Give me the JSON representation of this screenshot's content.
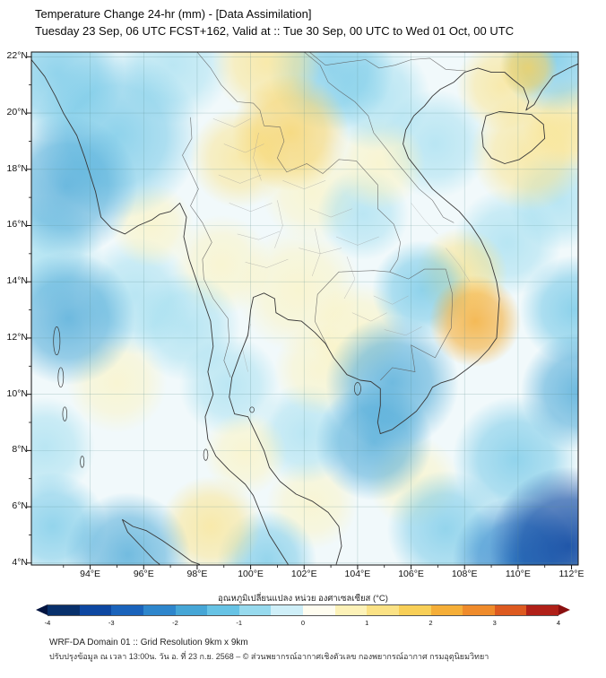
{
  "header": {
    "title": "Temperature Change 24-hr (mm) - [Data Assimilation]",
    "subtitle": "Tuesday 23 Sep, 06 UTC FCST+162, Valid at :: Tue 30 Sep, 00 UTC to Wed 01 Oct, 00 UTC"
  },
  "colorbar": {
    "label": "อุณหภูมิเปลี่ยนแปลง หน่วย องศาเซลเซียส (°C)",
    "ticks": [
      -4,
      -3,
      -2,
      -1,
      0,
      1,
      2,
      3,
      4
    ],
    "colors": [
      "#08306b",
      "#0d47a1",
      "#1a63bb",
      "#2e86cc",
      "#46a6d6",
      "#67c3e5",
      "#97daee",
      "#cfeff8",
      "#fffdf0",
      "#fdf2b8",
      "#fbe285",
      "#f8cf57",
      "#f5ae38",
      "#ef8b2b",
      "#dd5a20",
      "#b02018"
    ],
    "left_arrow_color": "#041540",
    "right_arrow_color": "#8a0f0f"
  },
  "footer": {
    "line1": "WRF-DA Domain 01 :: Grid Resolution 9km x 9km",
    "line2": "ปรับปรุงข้อมูล ณ เวลา 13:00น. วัน อ. ที่ 23 ก.ย. 2568 – © ส่วนพยากรณ์อากาศเชิงตัวเลข กองพยากรณ์อากาศ กรมอุตุนิยมวิทยา"
  },
  "chart_data": {
    "type": "heatmap",
    "variable": "24-hr temperature change",
    "units": "°C",
    "model": "WRF-DA Domain 01, grid resolution 9km x 9km",
    "init_time": "Tuesday 23 Sep, 06 UTC",
    "forecast_hour": "FCST+162",
    "valid_period": "Tue 30 Sep, 00 UTC to Wed 01 Oct, 00 UTC",
    "lon_range": [
      91.8,
      112.25
    ],
    "lat_range": [
      3.93,
      22.17
    ],
    "scale_range": [
      -4,
      4
    ],
    "x_ticks": [
      {
        "lon": 94,
        "label": "94°E"
      },
      {
        "lon": 96,
        "label": "96°E"
      },
      {
        "lon": 98,
        "label": "98°E"
      },
      {
        "lon": 100,
        "label": "100°E"
      },
      {
        "lon": 102,
        "label": "102°E"
      },
      {
        "lon": 104,
        "label": "104°E"
      },
      {
        "lon": 106,
        "label": "106°E"
      },
      {
        "lon": 108,
        "label": "108°E"
      },
      {
        "lon": 110,
        "label": "110°E"
      },
      {
        "lon": 112,
        "label": "112°E"
      }
    ],
    "y_ticks": [
      {
        "lat": 4,
        "label": "4°N"
      },
      {
        "lat": 6,
        "label": "6°N"
      },
      {
        "lat": 8,
        "label": "8°N"
      },
      {
        "lat": 10,
        "label": "10°N"
      },
      {
        "lat": 12,
        "label": "12°N"
      },
      {
        "lat": 14,
        "label": "14°N"
      },
      {
        "lat": 16,
        "label": "16°N"
      },
      {
        "lat": 18,
        "label": "18°N"
      },
      {
        "lat": 20,
        "label": "20°N"
      },
      {
        "lat": 22,
        "label": "22°N"
      }
    ],
    "anomalies": [
      {
        "lon": 92.8,
        "lat": 21.4,
        "dT": -1.3,
        "r": 1.6
      },
      {
        "lon": 95.0,
        "lat": 19.2,
        "dT": -1.4,
        "r": 2.0
      },
      {
        "lon": 93.1,
        "lat": 17.4,
        "dT": -1.6,
        "r": 1.7
      },
      {
        "lon": 92.3,
        "lat": 15.0,
        "dT": -1.0,
        "r": 1.4
      },
      {
        "lon": 93.2,
        "lat": 12.7,
        "dT": -1.8,
        "r": 1.6
      },
      {
        "lon": 95.7,
        "lat": 13.5,
        "dT": -0.8,
        "r": 1.4
      },
      {
        "lon": 97.6,
        "lat": 12.4,
        "dT": -0.9,
        "r": 1.3
      },
      {
        "lon": 99.2,
        "lat": 10.3,
        "dT": -0.7,
        "r": 1.2
      },
      {
        "lon": 97.1,
        "lat": 21.7,
        "dT": -0.7,
        "r": 1.4
      },
      {
        "lon": 103.0,
        "lat": 21.6,
        "dT": -1.2,
        "r": 1.5
      },
      {
        "lon": 104.7,
        "lat": 20.6,
        "dT": -1.0,
        "r": 1.3
      },
      {
        "lon": 106.9,
        "lat": 18.9,
        "dT": -0.8,
        "r": 1.3
      },
      {
        "lon": 104.2,
        "lat": 16.4,
        "dT": -0.7,
        "r": 1.1
      },
      {
        "lon": 106.4,
        "lat": 13.7,
        "dT": -1.4,
        "r": 1.2
      },
      {
        "lon": 105.3,
        "lat": 10.4,
        "dT": -1.7,
        "r": 1.6
      },
      {
        "lon": 104.6,
        "lat": 8.3,
        "dT": -1.6,
        "r": 1.4
      },
      {
        "lon": 102.0,
        "lat": 8.6,
        "dT": -0.7,
        "r": 1.2
      },
      {
        "lon": 109.6,
        "lat": 15.4,
        "dT": -0.9,
        "r": 1.3
      },
      {
        "lon": 111.5,
        "lat": 16.9,
        "dT": -0.9,
        "r": 1.2
      },
      {
        "lon": 111.4,
        "lat": 21.9,
        "dT": -1.4,
        "r": 1.3
      },
      {
        "lon": 112.1,
        "lat": 13.0,
        "dT": -1.5,
        "r": 1.3
      },
      {
        "lon": 112.3,
        "lat": 10.1,
        "dT": -1.8,
        "r": 1.4
      },
      {
        "lon": 109.9,
        "lat": 7.7,
        "dT": -1.3,
        "r": 1.5
      },
      {
        "lon": 111.9,
        "lat": 4.6,
        "dT": -3.2,
        "r": 1.9
      },
      {
        "lon": 109.9,
        "lat": 4.1,
        "dT": -2.3,
        "r": 1.5
      },
      {
        "lon": 107.3,
        "lat": 5.2,
        "dT": -1.2,
        "r": 1.4
      },
      {
        "lon": 100.6,
        "lat": 4.1,
        "dT": -1.1,
        "r": 1.2
      },
      {
        "lon": 95.4,
        "lat": 4.3,
        "dT": -1.6,
        "r": 1.5
      },
      {
        "lon": 92.6,
        "lat": 5.3,
        "dT": -1.2,
        "r": 1.3
      },
      {
        "lon": 92.3,
        "lat": 8.1,
        "dT": -0.8,
        "r": 1.2
      },
      {
        "lon": 100.6,
        "lat": 21.8,
        "dT": 1.2,
        "r": 1.3
      },
      {
        "lon": 101.5,
        "lat": 19.3,
        "dT": 1.5,
        "r": 1.4
      },
      {
        "lon": 99.6,
        "lat": 18.4,
        "dT": 1.0,
        "r": 1.2
      },
      {
        "lon": 96.3,
        "lat": 16.0,
        "dT": 0.8,
        "r": 1.0
      },
      {
        "lon": 104.8,
        "lat": 18.2,
        "dT": 0.8,
        "r": 1.1
      },
      {
        "lon": 102.3,
        "lat": 17.2,
        "dT": 0.6,
        "r": 1.2
      },
      {
        "lon": 98.9,
        "lat": 14.6,
        "dT": 0.7,
        "r": 1.2
      },
      {
        "lon": 101.8,
        "lat": 13.7,
        "dT": 0.8,
        "r": 1.5
      },
      {
        "lon": 104.0,
        "lat": 12.2,
        "dT": 0.9,
        "r": 1.2
      },
      {
        "lon": 108.4,
        "lat": 12.6,
        "dT": 2.3,
        "r": 1.1
      },
      {
        "lon": 107.9,
        "lat": 14.3,
        "dT": 1.3,
        "r": 1.1
      },
      {
        "lon": 110.4,
        "lat": 18.6,
        "dT": 1.2,
        "r": 1.4
      },
      {
        "lon": 111.9,
        "lat": 19.6,
        "dT": 1.0,
        "r": 1.1
      },
      {
        "lon": 109.4,
        "lat": 21.0,
        "dT": 1.1,
        "r": 1.1
      },
      {
        "lon": 110.4,
        "lat": 21.6,
        "dT": 1.7,
        "r": 0.7
      },
      {
        "lon": 102.6,
        "lat": 10.9,
        "dT": 0.7,
        "r": 1.1
      },
      {
        "lon": 99.8,
        "lat": 7.9,
        "dT": 0.8,
        "r": 1.0
      },
      {
        "lon": 98.5,
        "lat": 5.3,
        "dT": 1.2,
        "r": 1.2
      },
      {
        "lon": 102.3,
        "lat": 6.1,
        "dT": 0.6,
        "r": 1.1
      },
      {
        "lon": 95.0,
        "lat": 10.4,
        "dT": 0.6,
        "r": 1.2
      },
      {
        "lon": 106.1,
        "lat": 6.9,
        "dT": 0.5,
        "r": 1.1
      }
    ]
  }
}
